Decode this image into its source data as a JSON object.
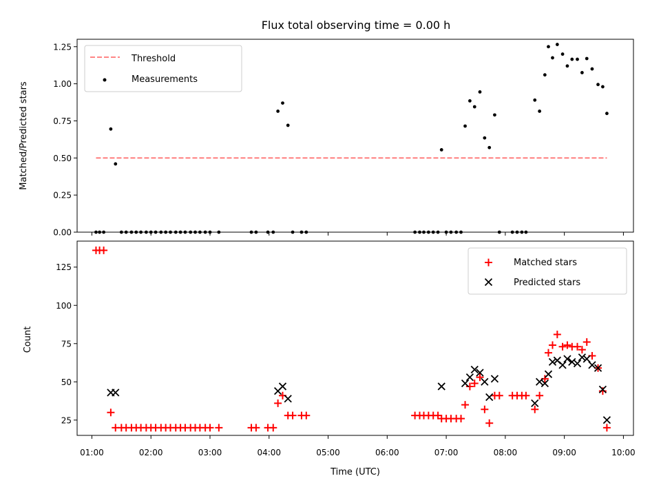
{
  "figure": {
    "title": "Flux total observing time = 0.00 h"
  },
  "chart_data": [
    {
      "type": "scatter",
      "id": "ratio",
      "ylabel": "Matched/Predicted stars",
      "xlim": [
        0.75,
        10.17
      ],
      "ylim": [
        0.0,
        1.3
      ],
      "yticks": [
        0.0,
        0.25,
        0.5,
        0.75,
        1.0,
        1.25
      ],
      "ytick_labels": [
        "0.00",
        "0.25",
        "0.50",
        "0.75",
        "1.00",
        "1.25"
      ],
      "legend_position": "top-left",
      "threshold": {
        "name": "Threshold",
        "value": 0.5,
        "x_range": [
          1.07,
          9.72
        ],
        "color": "#ff7373",
        "style": "dashed"
      },
      "series": [
        {
          "name": "Measurements",
          "color": "#000000",
          "marker": "dot",
          "points": [
            [
              1.07,
              0
            ],
            [
              1.13,
              0
            ],
            [
              1.2,
              0
            ],
            [
              1.32,
              0.695
            ],
            [
              1.4,
              0.46
            ],
            [
              1.5,
              0
            ],
            [
              1.58,
              0
            ],
            [
              1.67,
              0
            ],
            [
              1.75,
              0
            ],
            [
              1.83,
              0
            ],
            [
              1.92,
              0
            ],
            [
              2.0,
              0
            ],
            [
              2.08,
              0
            ],
            [
              2.17,
              0
            ],
            [
              2.25,
              0
            ],
            [
              2.33,
              0
            ],
            [
              2.42,
              0
            ],
            [
              2.5,
              0
            ],
            [
              2.58,
              0
            ],
            [
              2.67,
              0
            ],
            [
              2.75,
              0
            ],
            [
              2.83,
              0
            ],
            [
              2.92,
              0
            ],
            [
              3.0,
              0
            ],
            [
              3.15,
              0
            ],
            [
              3.7,
              0
            ],
            [
              3.78,
              0
            ],
            [
              3.98,
              0
            ],
            [
              4.07,
              0
            ],
            [
              4.15,
              0.815
            ],
            [
              4.23,
              0.87
            ],
            [
              4.32,
              0.72
            ],
            [
              4.4,
              0
            ],
            [
              4.55,
              0
            ],
            [
              4.63,
              0
            ],
            [
              6.47,
              0
            ],
            [
              6.55,
              0
            ],
            [
              6.62,
              0
            ],
            [
              6.7,
              0
            ],
            [
              6.78,
              0
            ],
            [
              6.86,
              0
            ],
            [
              6.92,
              0.555
            ],
            [
              7.0,
              0
            ],
            [
              7.08,
              0
            ],
            [
              7.17,
              0
            ],
            [
              7.25,
              0
            ],
            [
              7.32,
              0.715
            ],
            [
              7.4,
              0.885
            ],
            [
              7.48,
              0.845
            ],
            [
              7.57,
              0.945
            ],
            [
              7.65,
              0.635
            ],
            [
              7.73,
              0.57
            ],
            [
              7.82,
              0.79
            ],
            [
              7.9,
              0
            ],
            [
              8.12,
              0
            ],
            [
              8.2,
              0
            ],
            [
              8.28,
              0
            ],
            [
              8.35,
              0
            ],
            [
              8.5,
              0.89
            ],
            [
              8.58,
              0.815
            ],
            [
              8.67,
              1.06
            ],
            [
              8.73,
              1.25
            ],
            [
              8.8,
              1.175
            ],
            [
              8.88,
              1.265
            ],
            [
              8.97,
              1.2
            ],
            [
              9.05,
              1.12
            ],
            [
              9.13,
              1.165
            ],
            [
              9.22,
              1.165
            ],
            [
              9.3,
              1.075
            ],
            [
              9.38,
              1.17
            ],
            [
              9.47,
              1.1
            ],
            [
              9.57,
              0.995
            ],
            [
              9.65,
              0.98
            ],
            [
              9.72,
              0.8
            ]
          ]
        }
      ]
    },
    {
      "type": "scatter",
      "id": "counts",
      "xlabel": "Time (UTC)",
      "ylabel": "Count",
      "xlim": [
        0.75,
        10.17
      ],
      "ylim": [
        15,
        142
      ],
      "xticks": [
        1,
        2,
        3,
        4,
        5,
        6,
        7,
        8,
        9,
        10
      ],
      "xtick_labels": [
        "01:00",
        "02:00",
        "03:00",
        "04:00",
        "05:00",
        "06:00",
        "07:00",
        "08:00",
        "09:00",
        "10:00"
      ],
      "yticks": [
        25,
        50,
        75,
        100,
        125
      ],
      "ytick_labels": [
        "25",
        "50",
        "75",
        "100",
        "125"
      ],
      "legend_position": "top-right",
      "series": [
        {
          "name": "Matched stars",
          "color": "#ff0000",
          "marker": "plus",
          "points": [
            [
              1.07,
              136
            ],
            [
              1.13,
              136
            ],
            [
              1.2,
              136
            ],
            [
              1.32,
              30
            ],
            [
              1.4,
              20
            ],
            [
              1.5,
              20
            ],
            [
              1.58,
              20
            ],
            [
              1.67,
              20
            ],
            [
              1.75,
              20
            ],
            [
              1.83,
              20
            ],
            [
              1.92,
              20
            ],
            [
              2.0,
              20
            ],
            [
              2.08,
              20
            ],
            [
              2.17,
              20
            ],
            [
              2.25,
              20
            ],
            [
              2.33,
              20
            ],
            [
              2.42,
              20
            ],
            [
              2.5,
              20
            ],
            [
              2.58,
              20
            ],
            [
              2.67,
              20
            ],
            [
              2.75,
              20
            ],
            [
              2.83,
              20
            ],
            [
              2.92,
              20
            ],
            [
              3.0,
              20
            ],
            [
              3.15,
              20
            ],
            [
              3.7,
              20
            ],
            [
              3.78,
              20
            ],
            [
              3.98,
              20
            ],
            [
              4.07,
              20
            ],
            [
              4.15,
              36
            ],
            [
              4.23,
              41
            ],
            [
              4.32,
              28
            ],
            [
              4.4,
              28
            ],
            [
              4.55,
              28
            ],
            [
              4.63,
              28
            ],
            [
              6.47,
              28
            ],
            [
              6.55,
              28
            ],
            [
              6.62,
              28
            ],
            [
              6.7,
              28
            ],
            [
              6.78,
              28
            ],
            [
              6.86,
              28
            ],
            [
              6.92,
              26
            ],
            [
              7.0,
              26
            ],
            [
              7.08,
              26
            ],
            [
              7.17,
              26
            ],
            [
              7.25,
              26
            ],
            [
              7.32,
              35
            ],
            [
              7.4,
              47
            ],
            [
              7.48,
              49
            ],
            [
              7.57,
              53
            ],
            [
              7.65,
              32
            ],
            [
              7.73,
              23
            ],
            [
              7.82,
              41
            ],
            [
              7.9,
              41
            ],
            [
              8.12,
              41
            ],
            [
              8.2,
              41
            ],
            [
              8.28,
              41
            ],
            [
              8.35,
              41
            ],
            [
              8.5,
              32
            ],
            [
              8.58,
              41
            ],
            [
              8.67,
              52
            ],
            [
              8.73,
              69
            ],
            [
              8.8,
              74
            ],
            [
              8.88,
              81
            ],
            [
              8.97,
              73
            ],
            [
              9.05,
              74
            ],
            [
              9.13,
              73
            ],
            [
              9.22,
              73
            ],
            [
              9.3,
              71
            ],
            [
              9.38,
              76
            ],
            [
              9.47,
              67
            ],
            [
              9.57,
              59
            ],
            [
              9.65,
              44
            ],
            [
              9.72,
              20
            ]
          ]
        },
        {
          "name": "Predicted stars",
          "color": "#000000",
          "marker": "x",
          "points": [
            [
              1.32,
              43
            ],
            [
              1.4,
              43
            ],
            [
              4.15,
              44
            ],
            [
              4.23,
              47
            ],
            [
              4.32,
              39
            ],
            [
              6.92,
              47
            ],
            [
              7.32,
              49
            ],
            [
              7.4,
              53
            ],
            [
              7.48,
              58
            ],
            [
              7.57,
              56
            ],
            [
              7.65,
              50
            ],
            [
              7.73,
              40
            ],
            [
              7.82,
              52
            ],
            [
              8.5,
              36
            ],
            [
              8.58,
              50
            ],
            [
              8.67,
              49
            ],
            [
              8.73,
              55
            ],
            [
              8.8,
              63
            ],
            [
              8.88,
              64
            ],
            [
              8.97,
              61
            ],
            [
              9.05,
              65
            ],
            [
              9.13,
              63
            ],
            [
              9.22,
              62
            ],
            [
              9.3,
              66
            ],
            [
              9.38,
              65
            ],
            [
              9.47,
              61
            ],
            [
              9.57,
              59
            ],
            [
              9.65,
              45
            ],
            [
              9.72,
              25
            ]
          ]
        }
      ]
    }
  ]
}
